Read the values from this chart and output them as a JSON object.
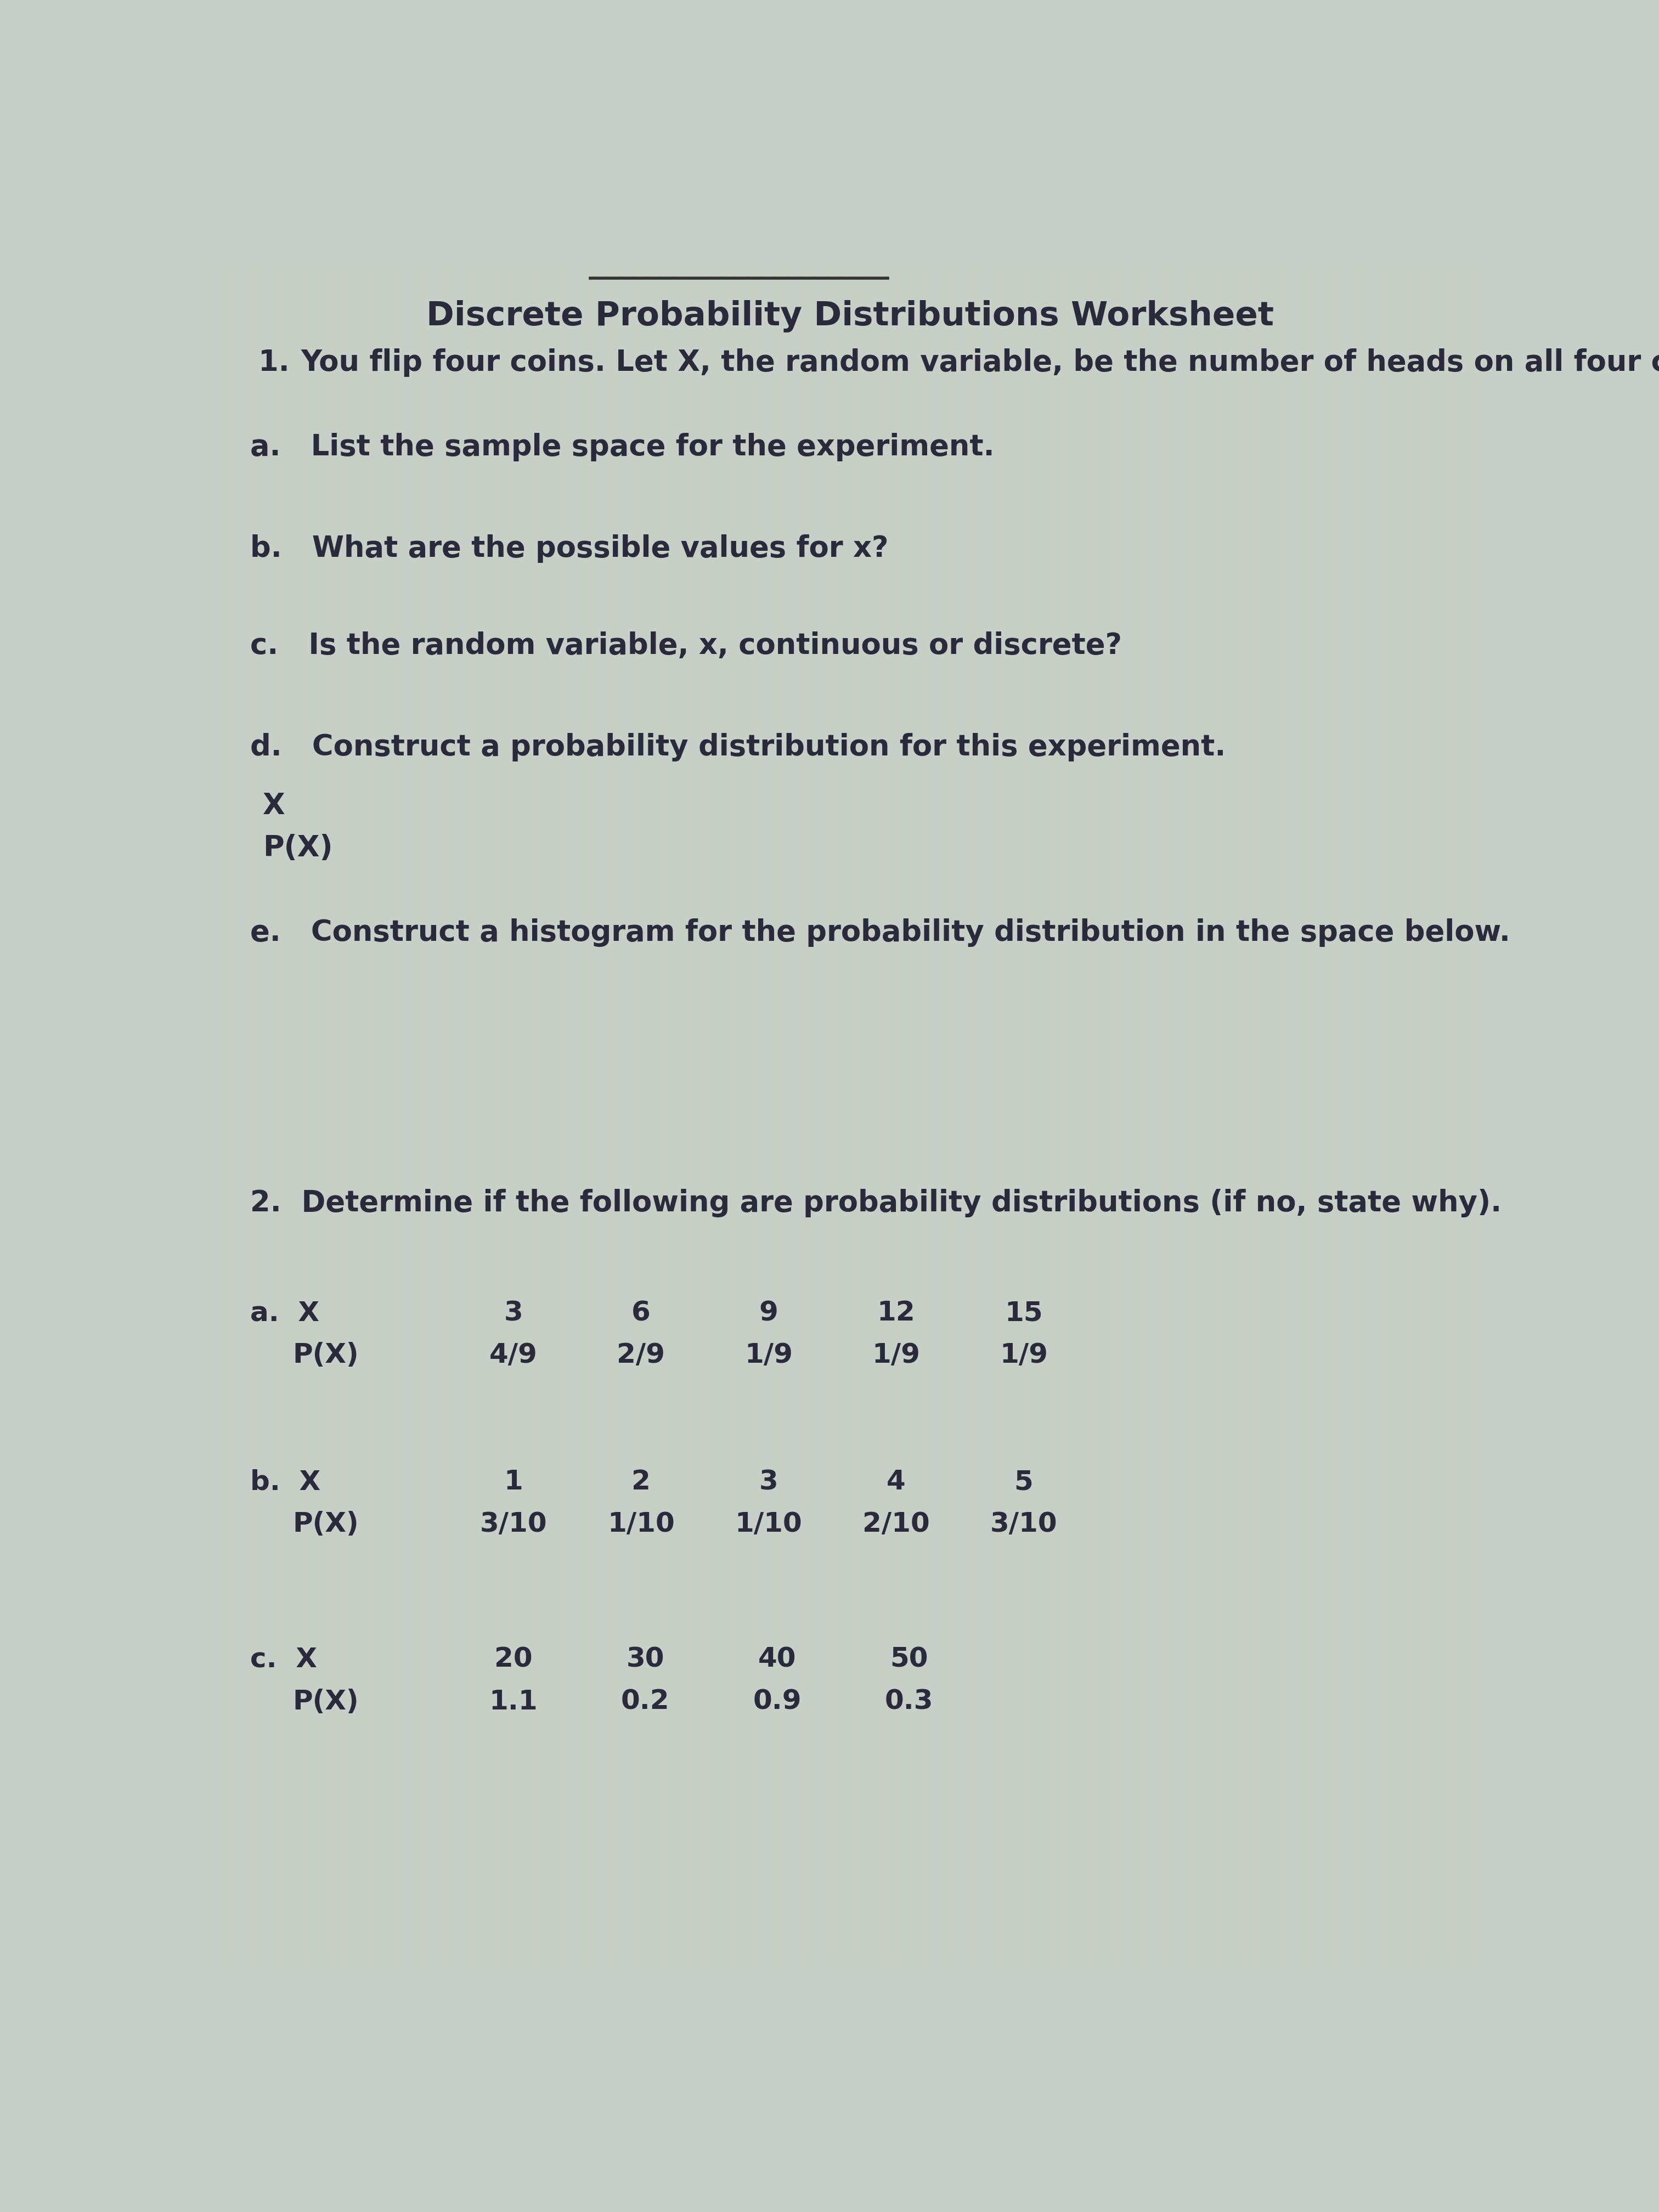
{
  "title": "Discrete Probability Distributions Worksheet",
  "bg_color": "#c8cfc8",
  "text_color": "#2a2a3a",
  "line1_num": "1.",
  "line1_text": "  You flip four coins. Let X, the random variable, be the number of heads on all four coins.",
  "q_a": "a.   List the sample space for the experiment.",
  "q_b": "b.   What are the possible values for x?",
  "q_c": "c.   Is the random variable, x, continuous or discrete?",
  "q_d": "d.   Construct a probability distribution for this experiment.",
  "d_x": "X",
  "d_px": "P(X)",
  "q_e": "e.   Construct a histogram for the probability distribution in the space below.",
  "q2": "2.  Determine if the following are probability distributions (if no, state why).",
  "qa_x_vals": [
    "3",
    "6",
    "9",
    "12",
    "15"
  ],
  "qa_p_vals": [
    "4/9",
    "2/9",
    "1/9",
    "1/9",
    "1/9"
  ],
  "qb_x_vals": [
    "1",
    "2",
    "3",
    "4",
    "5"
  ],
  "qb_p_vals": [
    "3/10",
    "1/10",
    "1/10",
    "2/10",
    "3/10"
  ],
  "qc_x_vals": [
    "20",
    "30",
    "40",
    "50"
  ],
  "qc_p_vals": [
    "1.1",
    "0.2",
    "0.9",
    "0.3"
  ],
  "title_fontsize": 44,
  "body_fontsize": 38,
  "table_fontsize": 36
}
